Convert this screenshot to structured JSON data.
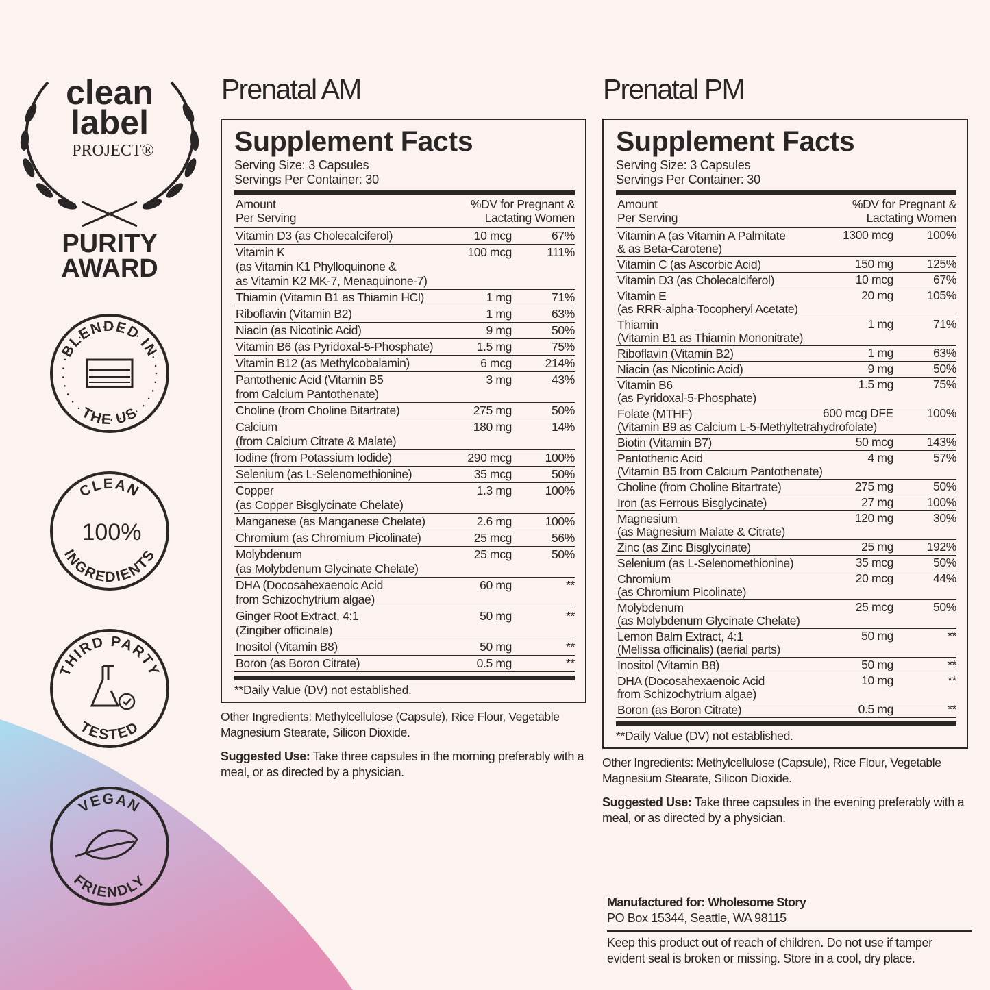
{
  "award": {
    "line1": "clean",
    "line2": "label",
    "line3": "PROJECT®",
    "line4": "PURITY",
    "line5": "AWARD"
  },
  "badges": [
    {
      "top": "BLENDED IN",
      "bottom": "THE US"
    },
    {
      "top": "CLEAN",
      "center": "100%",
      "bottom": "INGREDIENTS"
    },
    {
      "top": "THIRD PARTY",
      "bottom": "TESTED"
    },
    {
      "top": "VEGAN",
      "bottom": "FRIENDLY"
    }
  ],
  "panels": [
    {
      "title": "Prenatal AM",
      "facts_title": "Supplement Facts",
      "serving_size": "Serving Size: 3 Capsules",
      "servings_per_container": "Servings Per Container: 30",
      "header_left": [
        "Amount",
        "Per Serving"
      ],
      "header_right": [
        "%DV for Pregnant &",
        "Lactating Women"
      ],
      "rows": [
        {
          "name": [
            "Vitamin D3 (as Cholecalciferol)"
          ],
          "amount": "10 mcg",
          "dv": "67%"
        },
        {
          "name": [
            "Vitamin K",
            "(as Vitamin K1 Phylloquinone &",
            "as Vitamin K2 MK-7, Menaquinone-7)"
          ],
          "amount": "100 mcg",
          "dv": "111%"
        },
        {
          "name": [
            "Thiamin (Vitamin B1 as Thiamin HCl)"
          ],
          "amount": "1 mg",
          "dv": "71%"
        },
        {
          "name": [
            "Riboflavin (Vitamin B2)"
          ],
          "amount": "1 mg",
          "dv": "63%"
        },
        {
          "name": [
            "Niacin (as Nicotinic Acid)"
          ],
          "amount": "9 mg",
          "dv": "50%"
        },
        {
          "name": [
            "Vitamin B6 (as Pyridoxal-5-Phosphate)"
          ],
          "amount": "1.5 mg",
          "dv": "75%"
        },
        {
          "name": [
            "Vitamin B12 (as Methylcobalamin)"
          ],
          "amount": "6 mcg",
          "dv": "214%"
        },
        {
          "name": [
            "Pantothenic Acid (Vitamin B5",
            "from Calcium Pantothenate)"
          ],
          "amount": "3 mg",
          "dv": "43%"
        },
        {
          "name": [
            "Choline (from Choline Bitartrate)"
          ],
          "amount": "275 mg",
          "dv": "50%"
        },
        {
          "name": [
            "Calcium",
            "(from Calcium Citrate & Malate)"
          ],
          "amount": "180 mg",
          "dv": "14%"
        },
        {
          "name": [
            "Iodine (from Potassium Iodide)"
          ],
          "amount": "290 mcg",
          "dv": "100%"
        },
        {
          "name": [
            "Selenium (as L-Selenomethionine)"
          ],
          "amount": "35 mcg",
          "dv": "50%"
        },
        {
          "name": [
            "Copper",
            "(as Copper Bisglycinate Chelate)"
          ],
          "amount": "1.3 mg",
          "dv": "100%"
        },
        {
          "name": [
            "Manganese (as Manganese Chelate)"
          ],
          "amount": "2.6 mg",
          "dv": "100%"
        },
        {
          "name": [
            "Chromium (as Chromium Picolinate)"
          ],
          "amount": "25 mcg",
          "dv": "56%"
        },
        {
          "name": [
            "Molybdenum",
            "(as Molybdenum Glycinate Chelate)"
          ],
          "amount": "25 mcg",
          "dv": "50%"
        },
        {
          "name": [
            "DHA (Docosahexaenoic Acid",
            "from Schizochytrium algae)"
          ],
          "amount": "60 mg",
          "dv": "**"
        },
        {
          "name": [
            "Ginger Root Extract, 4:1",
            "(Zingiber officinale)"
          ],
          "amount": "50 mg",
          "dv": "**"
        },
        {
          "name": [
            "Inositol (Vitamin B8)"
          ],
          "amount": "50 mg",
          "dv": "**"
        },
        {
          "name": [
            "Boron (as Boron Citrate)"
          ],
          "amount": "0.5 mg",
          "dv": "**"
        }
      ],
      "footnote": "**Daily Value (DV) not established.",
      "other_ingredients": "Other Ingredients: Methylcellulose (Capsule), Rice Flour, Vegetable Magnesium Stearate, Silicon Dioxide.",
      "suggested_use_label": "Suggested Use:",
      "suggested_use_text": "Take three capsules in the morning preferably with a meal, or as directed by a physician."
    },
    {
      "title": "Prenatal PM",
      "facts_title": "Supplement Facts",
      "serving_size": "Serving Size: 3 Capsules",
      "servings_per_container": "Servings Per Container: 30",
      "header_left": [
        "Amount",
        "Per Serving"
      ],
      "header_right": [
        "%DV for Pregnant &",
        "Lactating Women"
      ],
      "rows": [
        {
          "name": [
            "Vitamin A (as Vitamin A Palmitate",
            "& as Beta-Carotene)"
          ],
          "amount": "1300 mcg",
          "dv": "100%"
        },
        {
          "name": [
            "Vitamin C (as Ascorbic Acid)"
          ],
          "amount": "150 mg",
          "dv": "125%"
        },
        {
          "name": [
            "Vitamin D3 (as Cholecalciferol)"
          ],
          "amount": "10 mcg",
          "dv": "67%"
        },
        {
          "name": [
            "Vitamin E",
            "(as RRR-alpha-Tocopheryl Acetate)"
          ],
          "amount": "20 mg",
          "dv": "105%"
        },
        {
          "name": [
            "Thiamin",
            "(Vitamin B1 as Thiamin Mononitrate)"
          ],
          "amount": "1 mg",
          "dv": "71%"
        },
        {
          "name": [
            "Riboflavin (Vitamin B2)"
          ],
          "amount": "1 mg",
          "dv": "63%"
        },
        {
          "name": [
            "Niacin (as Nicotinic Acid)"
          ],
          "amount": "9 mg",
          "dv": "50%"
        },
        {
          "name": [
            "Vitamin B6",
            "(as Pyridoxal-5-Phosphate)"
          ],
          "amount": "1.5 mg",
          "dv": "75%"
        },
        {
          "name": [
            "Folate (MTHF)",
            "(Vitamin B9 as Calcium L-5-Methyltetrahydrofolate)"
          ],
          "amount": "600 mcg DFE",
          "dv": "100%"
        },
        {
          "name": [
            "Biotin (Vitamin B7)"
          ],
          "amount": "50 mcg",
          "dv": "143%"
        },
        {
          "name": [
            "Pantothenic Acid",
            "(Vitamin B5 from Calcium Pantothenate)"
          ],
          "amount": "4 mg",
          "dv": "57%"
        },
        {
          "name": [
            "Choline (from Choline Bitartrate)"
          ],
          "amount": "275 mg",
          "dv": "50%"
        },
        {
          "name": [
            "Iron (as Ferrous Bisglycinate)"
          ],
          "amount": "27 mg",
          "dv": "100%"
        },
        {
          "name": [
            "Magnesium",
            "(as Magnesium Malate & Citrate)"
          ],
          "amount": "120 mg",
          "dv": "30%"
        },
        {
          "name": [
            "Zinc (as Zinc Bisglycinate)"
          ],
          "amount": "25 mg",
          "dv": "192%"
        },
        {
          "name": [
            "Selenium (as L-Selenomethionine)"
          ],
          "amount": "35 mcg",
          "dv": "50%"
        },
        {
          "name": [
            "Chromium",
            "(as Chromium Picolinate)"
          ],
          "amount": "20 mcg",
          "dv": "44%"
        },
        {
          "name": [
            "Molybdenum",
            "(as Molybdenum Glycinate Chelate)"
          ],
          "amount": "25 mcg",
          "dv": "50%"
        },
        {
          "name": [
            "Lemon Balm Extract, 4:1",
            "(Melissa officinalis) (aerial parts)"
          ],
          "amount": "50 mg",
          "dv": "**"
        },
        {
          "name": [
            "Inositol (Vitamin B8)"
          ],
          "amount": "50 mg",
          "dv": "**"
        },
        {
          "name": [
            "DHA (Docosahexaenoic Acid",
            "from Schizochytrium algae)"
          ],
          "amount": "10 mg",
          "dv": "**"
        },
        {
          "name": [
            "Boron (as Boron Citrate)"
          ],
          "amount": "0.5 mg",
          "dv": "**"
        }
      ],
      "footnote": "**Daily Value (DV) not established.",
      "other_ingredients": "Other Ingredients: Methylcellulose (Capsule), Rice Flour, Vegetable Magnesium Stearate, Silicon Dioxide.",
      "suggested_use_label": "Suggested Use:",
      "suggested_use_text": "Take three capsules in the evening preferably with a meal, or as directed by a physician."
    }
  ],
  "manufacturer": {
    "label": "Manufactured for: Wholesome Story",
    "address": "PO Box 15344, Seattle, WA 98115",
    "warning": "Keep this product out of reach of children. Do not use if tamper evident seal is broken or missing. Store in a cool, dry place."
  }
}
